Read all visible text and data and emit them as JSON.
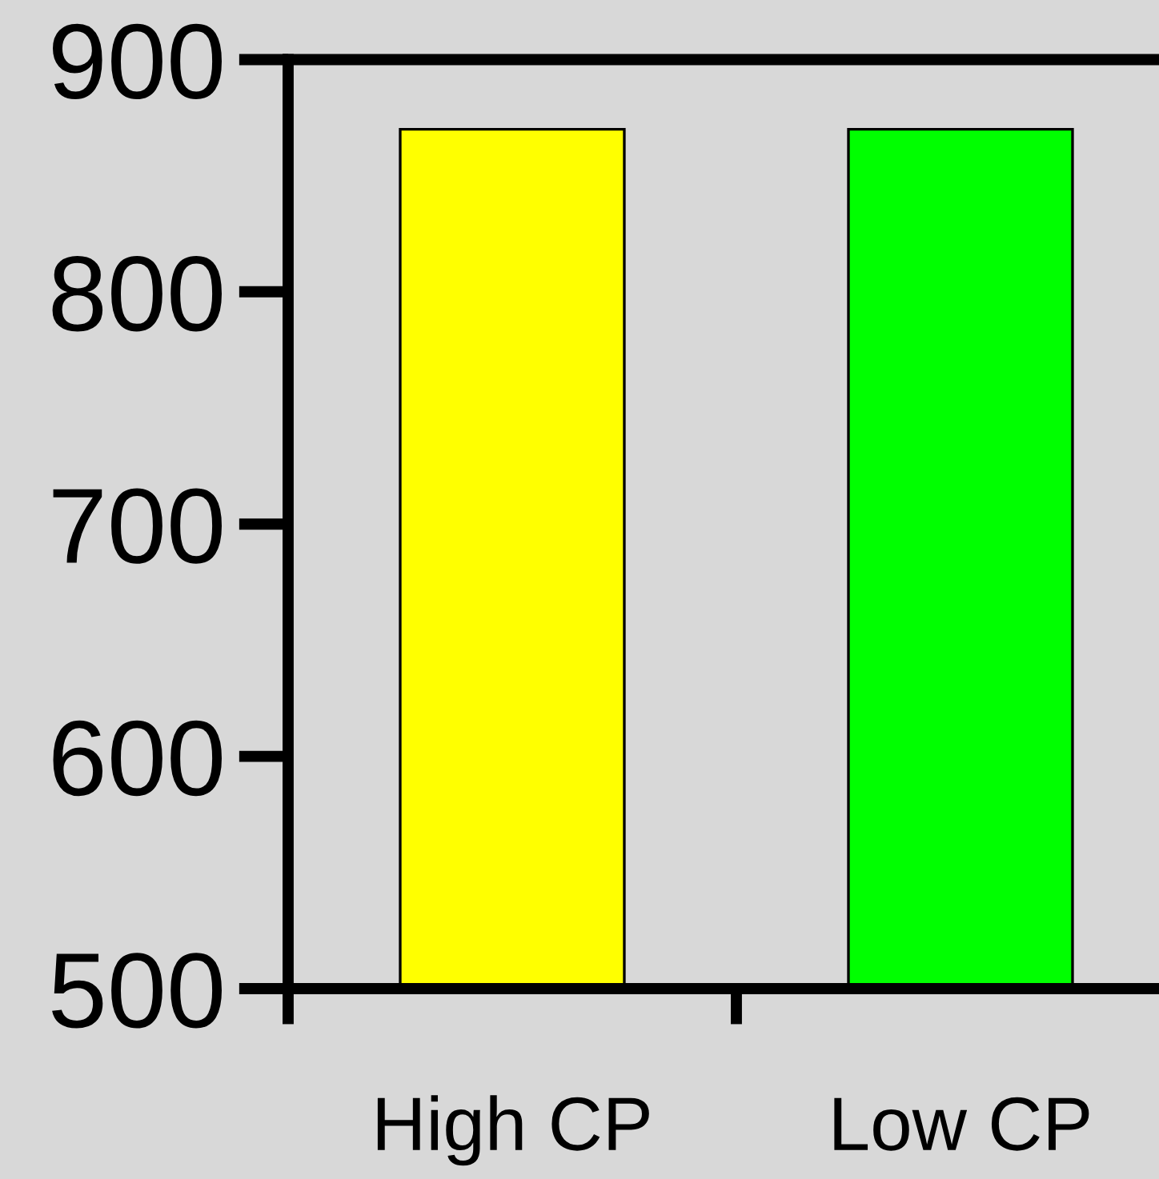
{
  "chart_data": {
    "type": "bar",
    "categories": [
      "High CP",
      "Low CP"
    ],
    "values": [
      870,
      870
    ],
    "colors": [
      "#ffff00",
      "#00ff00"
    ],
    "ylim": [
      500,
      900
    ],
    "yticks": [
      500,
      600,
      700,
      800,
      900
    ],
    "grid": false,
    "legend": false
  }
}
